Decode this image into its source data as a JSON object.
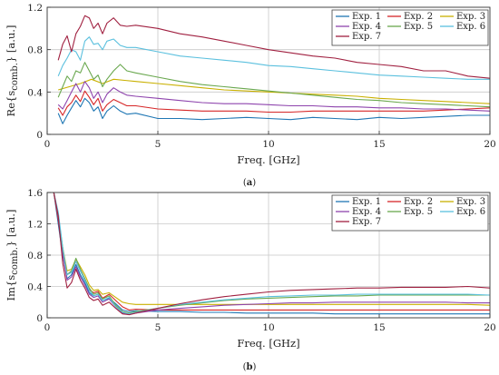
{
  "chart_data": [
    {
      "type": "line",
      "caption": "(a)",
      "ylabel": "Re{s",
      "ylabel_sub": "comb.",
      "ylabel_end": "} [a.u.]",
      "xlabel": "Freq. [GHz]",
      "xlim": [
        0,
        20
      ],
      "ylim": [
        0,
        1.2
      ],
      "xticks": [
        0,
        5,
        10,
        15,
        20
      ],
      "yticks": [
        0,
        0.4,
        0.8,
        1.2
      ],
      "ytick_labels": [
        "0",
        "0.4",
        "0.8",
        "1.2"
      ],
      "grid": true,
      "legend": "top-right, 3 columns",
      "series": [
        {
          "name": "Exp. 1",
          "color": "#1f77b4",
          "x": [
            0.5,
            0.7,
            0.9,
            1.1,
            1.3,
            1.5,
            1.7,
            1.9,
            2.1,
            2.3,
            2.5,
            2.7,
            3.0,
            3.3,
            3.6,
            4.0,
            5,
            6,
            7,
            8,
            9,
            10,
            11,
            12,
            13,
            14,
            15,
            16,
            17,
            18,
            19,
            20
          ],
          "y": [
            0.2,
            0.1,
            0.18,
            0.25,
            0.32,
            0.26,
            0.34,
            0.3,
            0.22,
            0.26,
            0.15,
            0.22,
            0.27,
            0.22,
            0.19,
            0.2,
            0.15,
            0.15,
            0.14,
            0.15,
            0.16,
            0.15,
            0.14,
            0.16,
            0.15,
            0.14,
            0.16,
            0.15,
            0.16,
            0.17,
            0.18,
            0.18
          ]
        },
        {
          "name": "Exp. 2",
          "color": "#d62728",
          "x": [
            0.5,
            0.7,
            0.9,
            1.1,
            1.3,
            1.5,
            1.7,
            1.9,
            2.1,
            2.3,
            2.5,
            2.7,
            3.0,
            3.3,
            3.6,
            4.0,
            5,
            6,
            7,
            8,
            9,
            10,
            11,
            12,
            13,
            14,
            15,
            16,
            17,
            18,
            19,
            20
          ],
          "y": [
            0.25,
            0.18,
            0.26,
            0.3,
            0.37,
            0.31,
            0.41,
            0.35,
            0.28,
            0.34,
            0.22,
            0.28,
            0.33,
            0.3,
            0.27,
            0.27,
            0.24,
            0.23,
            0.22,
            0.22,
            0.22,
            0.21,
            0.21,
            0.22,
            0.22,
            0.22,
            0.22,
            0.22,
            0.22,
            0.23,
            0.24,
            0.25
          ]
        },
        {
          "name": "Exp. 3",
          "color": "#c9b000",
          "x": [
            0.5,
            1,
            1.5,
            2,
            2.5,
            3,
            3.5,
            4,
            5,
            6,
            7,
            8,
            9,
            10,
            11,
            12,
            13,
            14,
            15,
            16,
            17,
            18,
            19,
            20
          ],
          "y": [
            0.42,
            0.45,
            0.48,
            0.52,
            0.48,
            0.52,
            0.51,
            0.5,
            0.48,
            0.46,
            0.44,
            0.42,
            0.41,
            0.4,
            0.39,
            0.38,
            0.37,
            0.36,
            0.34,
            0.33,
            0.32,
            0.31,
            0.3,
            0.29
          ]
        },
        {
          "name": "Exp. 4",
          "color": "#8e44ad",
          "x": [
            0.5,
            0.7,
            0.9,
            1.1,
            1.3,
            1.5,
            1.7,
            1.9,
            2.1,
            2.3,
            2.5,
            2.7,
            3.0,
            3.3,
            3.6,
            4.0,
            5,
            6,
            7,
            8,
            9,
            10,
            11,
            12,
            13,
            14,
            15,
            16,
            17,
            18,
            19,
            20
          ],
          "y": [
            0.28,
            0.24,
            0.32,
            0.4,
            0.48,
            0.4,
            0.5,
            0.44,
            0.34,
            0.4,
            0.3,
            0.38,
            0.44,
            0.4,
            0.37,
            0.36,
            0.34,
            0.32,
            0.3,
            0.29,
            0.29,
            0.28,
            0.27,
            0.27,
            0.26,
            0.26,
            0.25,
            0.25,
            0.24,
            0.24,
            0.23,
            0.22
          ]
        },
        {
          "name": "Exp. 5",
          "color": "#6aa84f",
          "x": [
            0.5,
            0.7,
            0.9,
            1.1,
            1.3,
            1.5,
            1.7,
            1.9,
            2.1,
            2.3,
            2.5,
            2.7,
            3.0,
            3.3,
            3.6,
            4.0,
            5,
            6,
            7,
            8,
            9,
            10,
            11,
            12,
            13,
            14,
            15,
            16,
            17,
            18,
            19,
            20
          ],
          "y": [
            0.35,
            0.45,
            0.55,
            0.5,
            0.6,
            0.58,
            0.68,
            0.6,
            0.52,
            0.56,
            0.45,
            0.52,
            0.6,
            0.66,
            0.6,
            0.58,
            0.54,
            0.5,
            0.47,
            0.45,
            0.43,
            0.41,
            0.39,
            0.37,
            0.35,
            0.33,
            0.32,
            0.3,
            0.29,
            0.28,
            0.27,
            0.26
          ]
        },
        {
          "name": "Exp. 6",
          "color": "#5bc0de",
          "x": [
            0.5,
            0.7,
            0.9,
            1.1,
            1.3,
            1.5,
            1.7,
            1.9,
            2.1,
            2.3,
            2.5,
            2.7,
            3.0,
            3.3,
            3.6,
            4.0,
            5,
            6,
            7,
            8,
            9,
            10,
            11,
            12,
            13,
            14,
            15,
            16,
            17,
            18,
            19,
            20
          ],
          "y": [
            0.55,
            0.65,
            0.72,
            0.8,
            0.78,
            0.7,
            0.88,
            0.92,
            0.85,
            0.86,
            0.8,
            0.88,
            0.9,
            0.84,
            0.82,
            0.82,
            0.78,
            0.74,
            0.72,
            0.7,
            0.68,
            0.65,
            0.64,
            0.62,
            0.6,
            0.58,
            0.56,
            0.55,
            0.54,
            0.53,
            0.52,
            0.52
          ]
        },
        {
          "name": "Exp. 7",
          "color": "#a02040",
          "x": [
            0.5,
            0.7,
            0.9,
            1.1,
            1.3,
            1.5,
            1.7,
            1.9,
            2.1,
            2.3,
            2.5,
            2.7,
            3.0,
            3.3,
            3.6,
            4.0,
            5,
            6,
            7,
            8,
            9,
            10,
            11,
            12,
            13,
            14,
            15,
            16,
            17,
            18,
            19,
            20
          ],
          "y": [
            0.7,
            0.85,
            0.93,
            0.78,
            0.95,
            1.02,
            1.12,
            1.1,
            1.0,
            1.05,
            0.95,
            1.05,
            1.1,
            1.03,
            1.02,
            1.03,
            1.0,
            0.95,
            0.92,
            0.88,
            0.84,
            0.8,
            0.77,
            0.74,
            0.72,
            0.68,
            0.66,
            0.64,
            0.6,
            0.6,
            0.55,
            0.53
          ]
        }
      ]
    },
    {
      "type": "line",
      "caption": "(b)",
      "ylabel": "Im{s",
      "ylabel_sub": "comb.",
      "ylabel_end": "} [a.u.]",
      "xlabel": "Freq. [GHz]",
      "xlim": [
        0,
        20
      ],
      "ylim": [
        0,
        1.6
      ],
      "xticks": [
        0,
        5,
        10,
        15,
        20
      ],
      "yticks": [
        0,
        0.4,
        0.8,
        1.2,
        1.6
      ],
      "ytick_labels": [
        "0",
        "0.4",
        "0.8",
        "1.2",
        "1.6"
      ],
      "grid": true,
      "legend": "top-right, 3 columns",
      "series": [
        {
          "name": "Exp. 1",
          "color": "#1f77b4",
          "x": [
            0.3,
            0.5,
            0.7,
            0.9,
            1.1,
            1.3,
            1.5,
            1.7,
            1.9,
            2.1,
            2.3,
            2.5,
            2.8,
            3.1,
            3.4,
            3.7,
            4,
            5,
            6,
            7,
            8,
            9,
            10,
            11,
            12,
            13,
            14,
            15,
            16,
            17,
            18,
            19,
            20
          ],
          "y": [
            1.6,
            1.2,
            0.8,
            0.5,
            0.55,
            0.68,
            0.55,
            0.45,
            0.32,
            0.28,
            0.3,
            0.22,
            0.25,
            0.18,
            0.1,
            0.08,
            0.09,
            0.08,
            0.08,
            0.07,
            0.07,
            0.06,
            0.06,
            0.06,
            0.06,
            0.05,
            0.05,
            0.05,
            0.05,
            0.05,
            0.05,
            0.05,
            0.05
          ]
        },
        {
          "name": "Exp. 2",
          "color": "#d62728",
          "x": [
            0.3,
            0.5,
            0.7,
            0.9,
            1.1,
            1.3,
            1.5,
            1.7,
            1.9,
            2.1,
            2.3,
            2.5,
            2.8,
            3.1,
            3.4,
            3.7,
            4,
            5,
            6,
            7,
            8,
            9,
            10,
            11,
            12,
            13,
            14,
            15,
            16,
            17,
            18,
            19,
            20
          ],
          "y": [
            1.6,
            1.25,
            0.85,
            0.55,
            0.6,
            0.72,
            0.6,
            0.5,
            0.36,
            0.32,
            0.34,
            0.25,
            0.3,
            0.22,
            0.14,
            0.1,
            0.11,
            0.1,
            0.1,
            0.1,
            0.1,
            0.1,
            0.1,
            0.1,
            0.1,
            0.1,
            0.1,
            0.1,
            0.1,
            0.1,
            0.1,
            0.1,
            0.1
          ]
        },
        {
          "name": "Exp. 3",
          "color": "#c9b000",
          "x": [
            0.3,
            0.5,
            0.7,
            0.9,
            1.1,
            1.3,
            1.5,
            1.7,
            1.9,
            2.1,
            2.3,
            2.5,
            2.8,
            3.1,
            3.4,
            3.7,
            4,
            5,
            6,
            7,
            8,
            9,
            10,
            11,
            12,
            13,
            14,
            15,
            16,
            17,
            18,
            19,
            20
          ],
          "y": [
            1.6,
            1.3,
            0.9,
            0.6,
            0.62,
            0.75,
            0.65,
            0.55,
            0.42,
            0.35,
            0.36,
            0.3,
            0.32,
            0.26,
            0.2,
            0.18,
            0.17,
            0.17,
            0.17,
            0.17,
            0.17,
            0.17,
            0.17,
            0.17,
            0.17,
            0.17,
            0.17,
            0.17,
            0.17,
            0.17,
            0.17,
            0.17,
            0.16
          ]
        },
        {
          "name": "Exp. 4",
          "color": "#8e44ad",
          "x": [
            0.3,
            0.5,
            0.7,
            0.9,
            1.1,
            1.3,
            1.5,
            1.7,
            1.9,
            2.1,
            2.3,
            2.5,
            2.8,
            3.1,
            3.4,
            3.7,
            4,
            5,
            6,
            7,
            8,
            9,
            10,
            11,
            12,
            13,
            14,
            15,
            16,
            17,
            18,
            19,
            20
          ],
          "y": [
            1.6,
            1.28,
            0.82,
            0.48,
            0.52,
            0.65,
            0.52,
            0.42,
            0.3,
            0.26,
            0.28,
            0.2,
            0.24,
            0.14,
            0.06,
            0.04,
            0.06,
            0.1,
            0.12,
            0.14,
            0.16,
            0.17,
            0.18,
            0.19,
            0.19,
            0.2,
            0.2,
            0.2,
            0.2,
            0.2,
            0.2,
            0.19,
            0.19
          ]
        },
        {
          "name": "Exp. 5",
          "color": "#6aa84f",
          "x": [
            0.3,
            0.5,
            0.7,
            0.9,
            1.1,
            1.3,
            1.5,
            1.7,
            1.9,
            2.1,
            2.3,
            2.5,
            2.8,
            3.1,
            3.4,
            3.7,
            4,
            5,
            6,
            7,
            8,
            9,
            10,
            11,
            12,
            13,
            14,
            15,
            16,
            17,
            18,
            19,
            20
          ],
          "y": [
            1.6,
            1.3,
            0.88,
            0.55,
            0.6,
            0.76,
            0.62,
            0.5,
            0.38,
            0.3,
            0.32,
            0.24,
            0.28,
            0.16,
            0.08,
            0.06,
            0.08,
            0.12,
            0.16,
            0.19,
            0.22,
            0.24,
            0.25,
            0.26,
            0.27,
            0.28,
            0.28,
            0.29,
            0.29,
            0.29,
            0.29,
            0.29,
            0.29
          ]
        },
        {
          "name": "Exp. 6",
          "color": "#5bc0de",
          "x": [
            0.3,
            0.5,
            0.7,
            0.9,
            1.1,
            1.3,
            1.5,
            1.7,
            1.9,
            2.1,
            2.3,
            2.5,
            2.8,
            3.1,
            3.4,
            3.7,
            4,
            5,
            6,
            7,
            8,
            9,
            10,
            11,
            12,
            13,
            14,
            15,
            16,
            17,
            18,
            19,
            20
          ],
          "y": [
            1.6,
            1.35,
            0.9,
            0.55,
            0.58,
            0.72,
            0.6,
            0.48,
            0.35,
            0.28,
            0.3,
            0.22,
            0.26,
            0.14,
            0.07,
            0.05,
            0.07,
            0.12,
            0.17,
            0.2,
            0.23,
            0.25,
            0.27,
            0.28,
            0.29,
            0.29,
            0.3,
            0.3,
            0.3,
            0.3,
            0.3,
            0.3,
            0.29
          ]
        },
        {
          "name": "Exp. 7",
          "color": "#a02040",
          "x": [
            0.3,
            0.5,
            0.7,
            0.9,
            1.1,
            1.3,
            1.5,
            1.7,
            1.9,
            2.1,
            2.3,
            2.5,
            2.8,
            3.1,
            3.4,
            3.7,
            4,
            5,
            6,
            7,
            8,
            9,
            10,
            11,
            12,
            13,
            14,
            15,
            16,
            17,
            18,
            19,
            20
          ],
          "y": [
            1.6,
            1.3,
            0.7,
            0.38,
            0.45,
            0.62,
            0.48,
            0.38,
            0.26,
            0.22,
            0.24,
            0.16,
            0.2,
            0.12,
            0.05,
            0.04,
            0.06,
            0.12,
            0.18,
            0.23,
            0.27,
            0.3,
            0.33,
            0.35,
            0.36,
            0.37,
            0.38,
            0.38,
            0.39,
            0.39,
            0.39,
            0.4,
            0.38
          ]
        }
      ]
    }
  ]
}
